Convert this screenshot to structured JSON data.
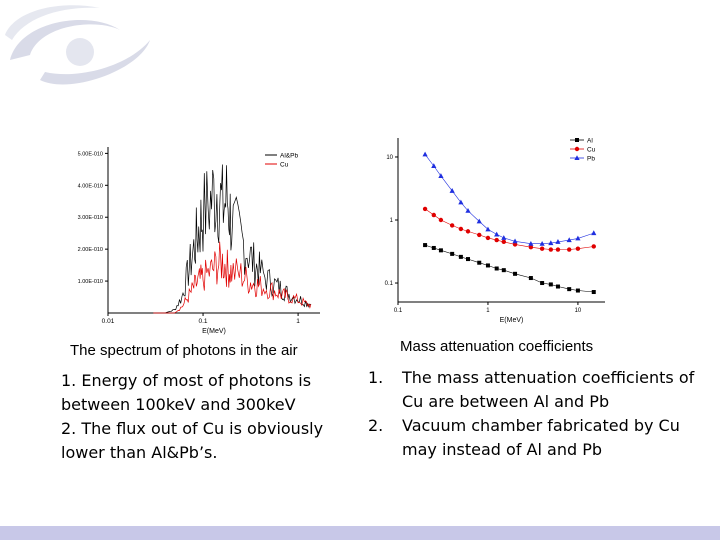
{
  "colors": {
    "black": "#000000",
    "red": "#e00000",
    "blue": "#1f2fe0",
    "band": "#c8c8e8",
    "logo": "#d9dbe8"
  },
  "chart_data": [
    {
      "type": "line",
      "title": "",
      "xlabel": "E(MeV)",
      "ylabel": "",
      "xscale": "log",
      "xlim": [
        0.01,
        1.7
      ],
      "ylim": [
        0,
        5.2e-10
      ],
      "xticks": [
        0.01,
        0.1,
        1
      ],
      "xtick_labels": [
        "0.01",
        "0.1",
        "1"
      ],
      "yticks": [
        1e-10,
        2e-10,
        3e-10,
        4e-10,
        5e-10
      ],
      "ytick_labels": [
        "1.00E-010",
        "2.00E-010",
        "3.00E-010",
        "4.00E-010",
        "5.00E-010"
      ],
      "legend_position": "top-right",
      "series": [
        {
          "name": "Al&Pb",
          "color": "#000000",
          "x": [
            0.03,
            0.04,
            0.05,
            0.06,
            0.07,
            0.08,
            0.09,
            0.1,
            0.12,
            0.14,
            0.16,
            0.18,
            0.2,
            0.25,
            0.3,
            0.35,
            0.4,
            0.5,
            0.6,
            0.7,
            0.8,
            1.0,
            1.2,
            1.4
          ],
          "y": [
            0.0,
            0.0,
            1e-11,
            5e-11,
            1.3e-10,
            2e-10,
            2.6e-10,
            3.1e-10,
            3.5e-10,
            3.9e-10,
            3.3e-10,
            3.6e-10,
            2.8e-10,
            2.3e-10,
            1.9e-10,
            1.5e-10,
            1.3e-10,
            1e-10,
            8.5e-11,
            7e-11,
            6e-11,
            4.5e-11,
            3.5e-11,
            2.5e-11
          ]
        },
        {
          "name": "Cu",
          "color": "#e00000",
          "x": [
            0.03,
            0.04,
            0.05,
            0.06,
            0.07,
            0.08,
            0.09,
            0.1,
            0.12,
            0.14,
            0.16,
            0.18,
            0.2,
            0.25,
            0.3,
            0.35,
            0.4,
            0.5,
            0.6,
            0.7,
            0.8,
            1.0,
            1.2,
            1.4
          ],
          "y": [
            0.0,
            0.0,
            0.0,
            2e-11,
            5e-11,
            8e-11,
            1e-10,
            1.1e-10,
            1.3e-10,
            1.5e-10,
            1.6e-10,
            1.4e-10,
            1.3e-10,
            1.2e-10,
            1e-10,
            9e-11,
            8.5e-11,
            7.5e-11,
            6.5e-11,
            5.5e-11,
            5e-11,
            4e-11,
            3e-11,
            2.2e-11
          ]
        }
      ]
    },
    {
      "type": "line",
      "title": "",
      "xlabel": "E(MeV)",
      "ylabel": "",
      "xscale": "log",
      "yscale": "log",
      "xlim": [
        0.1,
        20
      ],
      "ylim": [
        0.05,
        20
      ],
      "xticks": [
        0.1,
        1,
        10
      ],
      "xtick_labels": [
        "0.1",
        "1",
        "10"
      ],
      "yticks": [
        0.1,
        1,
        10
      ],
      "ytick_labels": [
        "0.1",
        "1",
        "10"
      ],
      "legend_position": "top-right",
      "series": [
        {
          "name": "Al",
          "color": "#000000",
          "marker": "square",
          "x": [
            0.2,
            0.25,
            0.3,
            0.4,
            0.5,
            0.6,
            0.8,
            1,
            1.25,
            1.5,
            2,
            3,
            4,
            5,
            6,
            8,
            10,
            15
          ],
          "y": [
            0.4,
            0.36,
            0.33,
            0.29,
            0.26,
            0.24,
            0.21,
            0.19,
            0.17,
            0.16,
            0.14,
            0.12,
            0.1,
            0.095,
            0.088,
            0.08,
            0.076,
            0.072
          ]
        },
        {
          "name": "Cu",
          "color": "#e00000",
          "marker": "circle",
          "x": [
            0.2,
            0.25,
            0.3,
            0.4,
            0.5,
            0.6,
            0.8,
            1,
            1.25,
            1.5,
            2,
            3,
            4,
            5,
            6,
            8,
            10,
            15
          ],
          "y": [
            1.5,
            1.2,
            1.0,
            0.82,
            0.72,
            0.66,
            0.58,
            0.52,
            0.48,
            0.45,
            0.41,
            0.37,
            0.35,
            0.34,
            0.34,
            0.34,
            0.35,
            0.38
          ]
        },
        {
          "name": "Pb",
          "color": "#1f2fe0",
          "marker": "triangle",
          "x": [
            0.2,
            0.25,
            0.3,
            0.4,
            0.5,
            0.6,
            0.8,
            1,
            1.25,
            1.5,
            2,
            3,
            4,
            5,
            6,
            8,
            10,
            15
          ],
          "y": [
            11,
            7.2,
            5.0,
            2.9,
            1.9,
            1.4,
            0.95,
            0.71,
            0.59,
            0.52,
            0.46,
            0.42,
            0.42,
            0.43,
            0.45,
            0.48,
            0.51,
            0.62
          ]
        }
      ]
    }
  ],
  "captions": {
    "left": "The spectrum of photons in the air",
    "right": "Mass attenuation coefficients"
  },
  "notes_left": [
    "1.  Energy of most of photons is between 100keV and 300keV",
    "2.  The flux out of Cu is obviously lower than Al&Pb’s."
  ],
  "notes_right": [
    {
      "num": "1.",
      "text": "The mass attenuation coefficients of Cu are between Al  and Pb"
    },
    {
      "num": "2.",
      "text": "Vacuum chamber  fabricated by Cu may instead of Al and Pb"
    }
  ]
}
